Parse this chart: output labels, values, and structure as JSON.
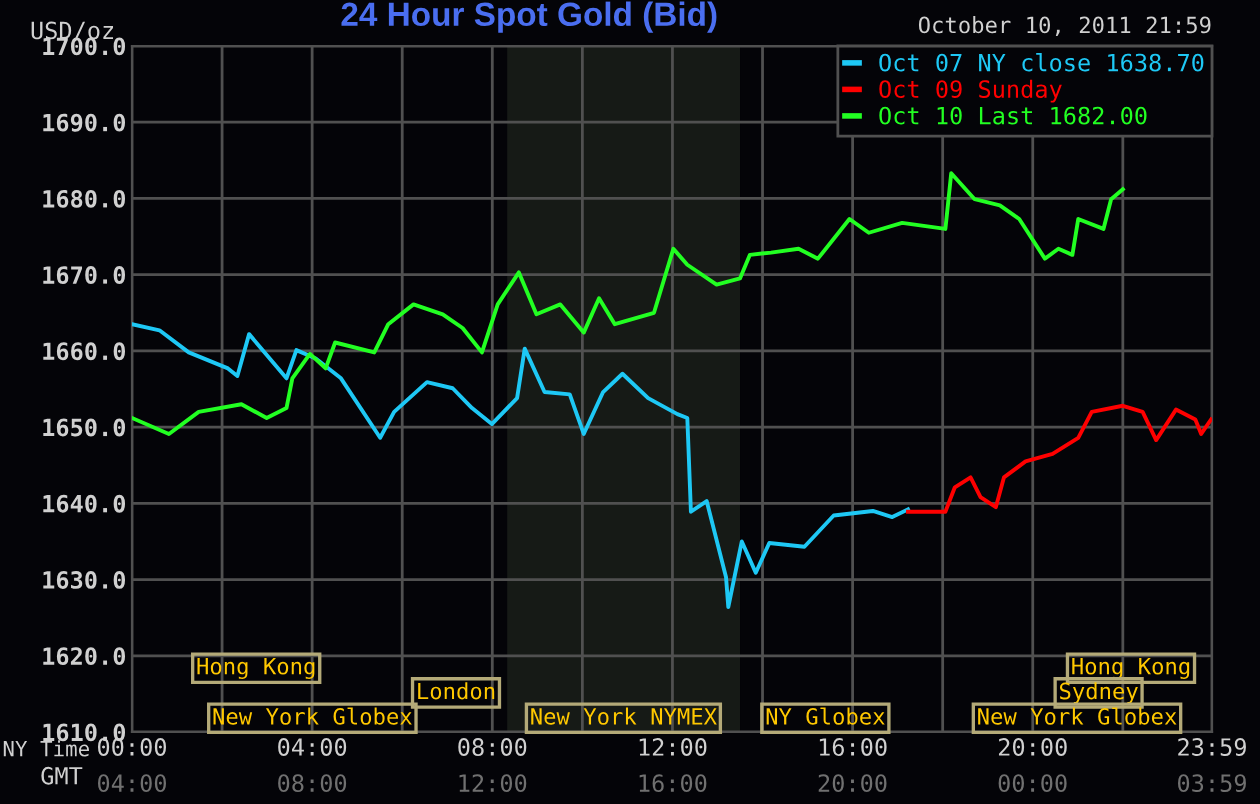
{
  "chart_data": {
    "type": "line",
    "title": "24 Hour Spot Gold (Bid)",
    "ylabel": "USD/oz",
    "xlabel": "NY Time",
    "x2label": "GMT",
    "annotations": [
      "October 10, 2011 21:59",
      "Hong Kong",
      "Hong Kong",
      "London",
      "Sydney",
      "New York Globex",
      "New York NYMEX",
      "NY Globex",
      "New York Globex"
    ],
    "xlim": [
      0,
      23.98
    ],
    "ylim": [
      1610,
      1700
    ],
    "yticks": [
      {
        "value": 1610,
        "label": "1610.0"
      },
      {
        "value": 1620,
        "label": "1620.0"
      },
      {
        "value": 1630,
        "label": "1630.0"
      },
      {
        "value": 1640,
        "label": "1640.0"
      },
      {
        "value": 1650,
        "label": "1650.0"
      },
      {
        "value": 1660,
        "label": "1660.0"
      },
      {
        "value": 1670,
        "label": "1670.0"
      },
      {
        "value": 1680,
        "label": "1680.0"
      },
      {
        "value": 1690,
        "label": "1690.0"
      },
      {
        "value": 1700,
        "label": "1700.0"
      }
    ],
    "xticks": [
      {
        "value": 0,
        "label": "00:00"
      },
      {
        "value": 2,
        "label": null
      },
      {
        "value": 4,
        "label": "04:00"
      },
      {
        "value": 6,
        "label": null
      },
      {
        "value": 8,
        "label": "08:00"
      },
      {
        "value": 10,
        "label": null
      },
      {
        "value": 12,
        "label": "12:00"
      },
      {
        "value": 14,
        "label": null
      },
      {
        "value": 16,
        "label": "16:00"
      },
      {
        "value": 18,
        "label": null
      },
      {
        "value": 20,
        "label": "20:00"
      },
      {
        "value": 22,
        "label": null
      },
      {
        "value": 23.98,
        "label": "23:59"
      }
    ],
    "x2lim": [
      "2011-10-10T04:00",
      "2011-10-11T03:59"
    ],
    "x2ticks": [
      {
        "value": "2011-10-10T04:00",
        "label": "04:00"
      },
      {
        "value": "2011-10-10T08:00",
        "label": "08:00"
      },
      {
        "value": "2011-10-10T12:00",
        "label": "12:00"
      },
      {
        "value": "2011-10-10T16:00",
        "label": "16:00"
      },
      {
        "value": "2011-10-10T20:00",
        "label": "20:00"
      },
      {
        "value": "2011-10-11T00:00",
        "label": "00:00"
      },
      {
        "value": "2011-10-11T03:59",
        "label": "03:59"
      }
    ],
    "grid": true,
    "legend": "top right",
    "marker": "none",
    "line_style": "solid",
    "bands": [
      {
        "axis": "x",
        "from": 8.33,
        "to": 13.5,
        "color": "#161a16"
      }
    ],
    "series": [
      {
        "name": "Oct 07 NY close 1638.70",
        "color": "#1ec8f5",
        "x": [
          0,
          0.61,
          1.26,
          2.13,
          2.34,
          2.6,
          3.43,
          3.65,
          4.08,
          4.64,
          5.51,
          5.82,
          6.55,
          7.12,
          7.55,
          7.99,
          8.55,
          8.72,
          9.16,
          9.72,
          10.03,
          10.46,
          10.89,
          11.46,
          12.11,
          12.33,
          12.41,
          12.76,
          13.19,
          13.24,
          13.54,
          13.85,
          14.15,
          14.93,
          15.58,
          16.45,
          16.88,
          17.23
        ],
        "values": [
          1663.5,
          1662.7,
          1659.8,
          1657.7,
          1656.7,
          1662.2,
          1656.4,
          1660.1,
          1659.0,
          1656.4,
          1648.6,
          1652.0,
          1655.9,
          1655.1,
          1652.5,
          1650.4,
          1653.8,
          1660.3,
          1654.6,
          1654.3,
          1649.1,
          1654.6,
          1657.0,
          1653.8,
          1651.7,
          1651.2,
          1638.9,
          1640.3,
          1630.3,
          1626.4,
          1635.0,
          1630.9,
          1634.8,
          1634.3,
          1638.4,
          1639.0,
          1638.2,
          1639.2
        ]
      },
      {
        "name": "Oct 09 Sunday",
        "color": "#ff0000",
        "x": [
          17.23,
          18.06,
          18.27,
          18.62,
          18.84,
          19.18,
          19.36,
          19.84,
          20.44,
          21.01,
          21.31,
          22.0,
          22.44,
          22.74,
          23.18,
          23.61,
          23.74,
          23.96
        ],
        "values": [
          1638.9,
          1638.9,
          1642.1,
          1643.4,
          1640.8,
          1639.5,
          1643.4,
          1645.5,
          1646.5,
          1648.6,
          1652.0,
          1652.8,
          1652.0,
          1648.3,
          1652.3,
          1651.0,
          1649.1,
          1651.0
        ]
      },
      {
        "name": "Oct 10 Last 1682.00",
        "color": "#22ff22",
        "x": [
          0,
          0.82,
          1.48,
          2.43,
          2.99,
          3.43,
          3.56,
          3.95,
          4.3,
          4.51,
          5.38,
          5.69,
          6.25,
          6.9,
          7.34,
          7.77,
          8.12,
          8.59,
          8.98,
          9.51,
          10.03,
          10.37,
          10.72,
          11.59,
          12.02,
          12.33,
          12.98,
          13.5,
          13.72,
          14.19,
          14.8,
          15.23,
          15.93,
          16.36,
          17.1,
          18.06,
          18.19,
          18.71,
          19.27,
          19.7,
          20.27,
          20.57,
          20.88,
          21.01,
          21.57,
          21.74,
          22.0
        ],
        "values": [
          1651.2,
          1649.1,
          1652.0,
          1653.0,
          1651.2,
          1652.5,
          1656.4,
          1659.6,
          1657.7,
          1661.1,
          1659.8,
          1663.5,
          1666.1,
          1664.8,
          1663.0,
          1659.8,
          1666.1,
          1670.3,
          1664.8,
          1666.1,
          1662.4,
          1666.9,
          1663.5,
          1665.0,
          1673.4,
          1671.3,
          1668.7,
          1669.5,
          1672.6,
          1672.9,
          1673.4,
          1672.1,
          1677.3,
          1675.5,
          1676.8,
          1676.0,
          1683.3,
          1679.9,
          1679.1,
          1677.3,
          1672.1,
          1673.4,
          1672.6,
          1677.3,
          1676.0,
          1679.9,
          1681.2
        ]
      }
    ]
  }
}
